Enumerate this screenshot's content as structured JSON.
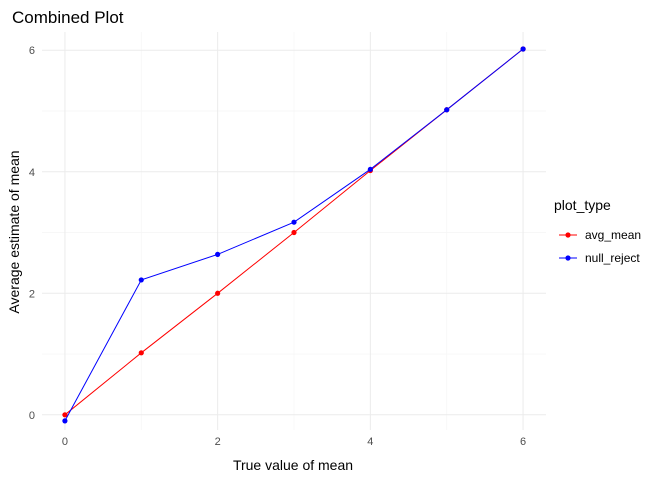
{
  "chart_data": {
    "type": "line",
    "title": "Combined Plot",
    "xlabel": "True value of mean",
    "ylabel": "Average estimate of mean",
    "xlim": [
      -0.3,
      6.3
    ],
    "ylim": [
      -0.25,
      6.3
    ],
    "x_ticks": [
      0,
      2,
      4,
      6
    ],
    "y_ticks": [
      0,
      2,
      4,
      6
    ],
    "grid": true,
    "legend": {
      "title": "plot_type",
      "placement": "right"
    },
    "series": [
      {
        "name": "avg_mean",
        "color": "#ff0000",
        "x": [
          0,
          1,
          2,
          3,
          4,
          5,
          6
        ],
        "y": [
          0.0,
          1.02,
          2.0,
          3.0,
          4.02,
          5.02,
          6.02
        ]
      },
      {
        "name": "null_reject",
        "color": "#0000ff",
        "x": [
          0,
          1,
          2,
          3,
          4,
          5,
          6
        ],
        "y": [
          -0.1,
          2.22,
          2.64,
          3.17,
          4.04,
          5.02,
          6.02
        ]
      }
    ]
  }
}
